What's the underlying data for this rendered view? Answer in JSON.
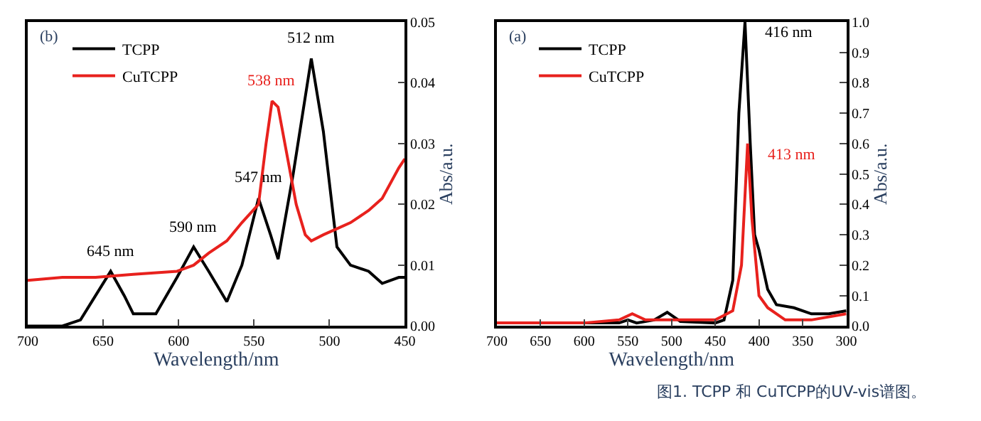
{
  "chart_data": [
    {
      "type": "line",
      "xlabel": "Wavelength/nm",
      "ylabel": "Abs/a.u.",
      "xlim": [
        700,
        450
      ],
      "xticks": [
        700,
        650,
        600,
        550,
        500,
        450
      ],
      "ylim": [
        0,
        0.05
      ],
      "yticks": [
        {
          "value": 0,
          "label": "0.00"
        },
        {
          "value": 0.01,
          "label": "0.01"
        },
        {
          "value": 0.02,
          "label": "0.02"
        },
        {
          "value": 0.03,
          "label": "0.03"
        },
        {
          "value": 0.04,
          "label": "0.04"
        },
        {
          "value": 0.05,
          "label": "0.05"
        }
      ],
      "legend": "top left",
      "marker": "none",
      "line_style": "solid",
      "x": [
        700,
        677,
        665,
        655,
        645,
        636,
        630,
        615,
        601,
        590,
        580,
        568,
        558,
        547,
        539,
        534,
        524,
        512,
        504,
        495,
        486,
        474,
        465,
        454,
        450
      ],
      "series": [
        {
          "name": "TCPP",
          "color": "#000000",
          "values": [
            0.0,
            0.0,
            0.001,
            0.005,
            0.009,
            0.005,
            0.002,
            0.002,
            0.008,
            0.013,
            0.009,
            0.004,
            0.01,
            0.021,
            0.015,
            0.011,
            0.025,
            0.044,
            0.032,
            0.013,
            0.01,
            0.009,
            0.007,
            0.008,
            0.008
          ]
        },
        {
          "name": "CuTCPP",
          "color": "#e8211d",
          "x": [
            700,
            677,
            655,
            630,
            601,
            590,
            580,
            568,
            558,
            547,
            545,
            542,
            538,
            534,
            528,
            522,
            516,
            512,
            504,
            495,
            486,
            474,
            465,
            454,
            450
          ],
          "values": [
            0.0075,
            0.008,
            0.008,
            0.0085,
            0.009,
            0.01,
            0.012,
            0.014,
            0.017,
            0.02,
            0.024,
            0.03,
            0.037,
            0.036,
            0.028,
            0.02,
            0.015,
            0.014,
            0.015,
            0.016,
            0.017,
            0.019,
            0.021,
            0.026,
            0.0275
          ]
        }
      ],
      "annotations": [
        "(b)",
        {
          "text": "512 nm",
          "x": 512,
          "y": 0.044
        },
        {
          "text": "538 nm",
          "x": 538,
          "y": 0.037
        },
        {
          "text": "547 nm",
          "x": 547,
          "y": 0.021
        },
        {
          "text": "590 nm",
          "x": 590,
          "y": 0.013
        },
        {
          "text": "645 nm",
          "x": 645,
          "y": 0.009
        }
      ]
    },
    {
      "type": "line",
      "xlabel": "Wavelength/nm",
      "ylabel": "Abs/a.u.",
      "xlim": [
        700,
        300
      ],
      "xticks": [
        700,
        650,
        600,
        550,
        500,
        450,
        400,
        350,
        300
      ],
      "ylim": [
        0,
        1.0
      ],
      "yticks": [
        {
          "value": 0,
          "label": "0.0"
        },
        0.1,
        0.2,
        0.3,
        0.4,
        0.5,
        0.6,
        0.7,
        0.8,
        0.9,
        {
          "value": 1.0,
          "label": "1.0"
        }
      ],
      "legend": "top left",
      "marker": "none",
      "line_style": "solid",
      "series": [
        {
          "name": "TCPP",
          "color": "#000000",
          "x": [
            700,
            600,
            560,
            550,
            540,
            520,
            505,
            490,
            450,
            440,
            430,
            423,
            416,
            410,
            405,
            400,
            390,
            380,
            360,
            340,
            320,
            300
          ],
          "values": [
            0.01,
            0.01,
            0.01,
            0.02,
            0.01,
            0.02,
            0.045,
            0.015,
            0.01,
            0.02,
            0.15,
            0.7,
            1.0,
            0.6,
            0.3,
            0.25,
            0.12,
            0.07,
            0.06,
            0.04,
            0.04,
            0.05
          ]
        },
        {
          "name": "CuTCPP",
          "color": "#e8211d",
          "x": [
            700,
            600,
            560,
            545,
            530,
            450,
            430,
            420,
            413,
            408,
            400,
            390,
            370,
            340,
            300
          ],
          "values": [
            0.01,
            0.01,
            0.02,
            0.04,
            0.02,
            0.02,
            0.05,
            0.2,
            0.6,
            0.35,
            0.1,
            0.06,
            0.02,
            0.02,
            0.04
          ]
        }
      ],
      "annotations": [
        "(a)",
        "图1. TCPP 和 CuTCPP的UV-vis谱图。",
        {
          "text": "416 nm",
          "x": 416,
          "y": 1.0
        },
        {
          "text": "413 nm",
          "x": 413,
          "y": 0.6
        }
      ]
    }
  ]
}
